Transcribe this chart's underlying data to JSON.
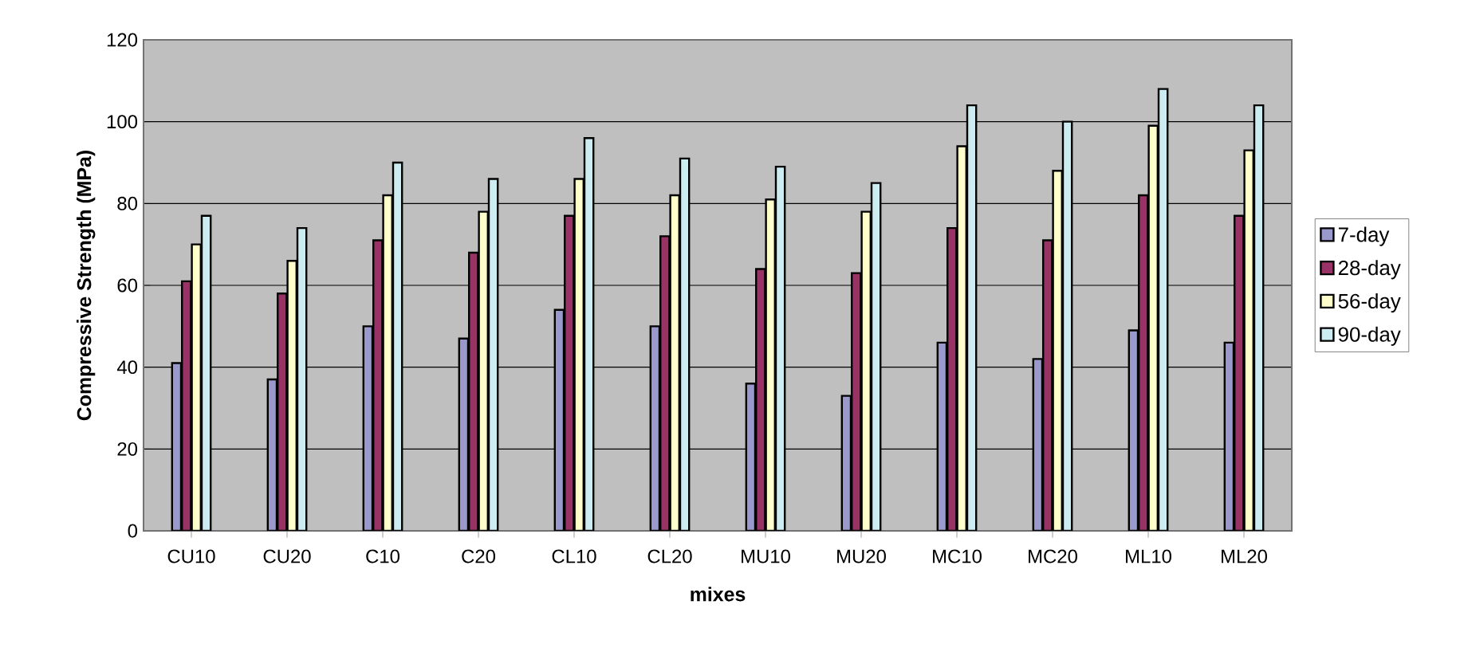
{
  "chart_data": {
    "type": "bar",
    "xlabel": "mixes",
    "ylabel": "Compressive Strength (MPa)",
    "categories": [
      "CU10",
      "CU20",
      "C10",
      "C20",
      "CL10",
      "CL20",
      "MU10",
      "MU20",
      "MC10",
      "MC20",
      "ML10",
      "ML20"
    ],
    "series": [
      {
        "name": "7-day",
        "color": "#9999cc",
        "values": [
          41,
          37,
          50,
          47,
          54,
          50,
          36,
          33,
          46,
          42,
          49,
          46
        ]
      },
      {
        "name": "28-day",
        "color": "#993366",
        "values": [
          61,
          58,
          71,
          68,
          77,
          72,
          64,
          63,
          74,
          71,
          82,
          77
        ]
      },
      {
        "name": "56-day",
        "color": "#ffffcc",
        "values": [
          70,
          66,
          82,
          78,
          86,
          82,
          81,
          78,
          94,
          88,
          99,
          93
        ]
      },
      {
        "name": "90-day",
        "color": "#ccecf2",
        "values": [
          77,
          74,
          90,
          86,
          96,
          91,
          89,
          85,
          104,
          100,
          108,
          104
        ]
      }
    ],
    "ylim": [
      0,
      120
    ],
    "yticks": [
      0,
      20,
      40,
      60,
      80,
      100,
      120
    ],
    "grid": "y",
    "legend": "right"
  }
}
